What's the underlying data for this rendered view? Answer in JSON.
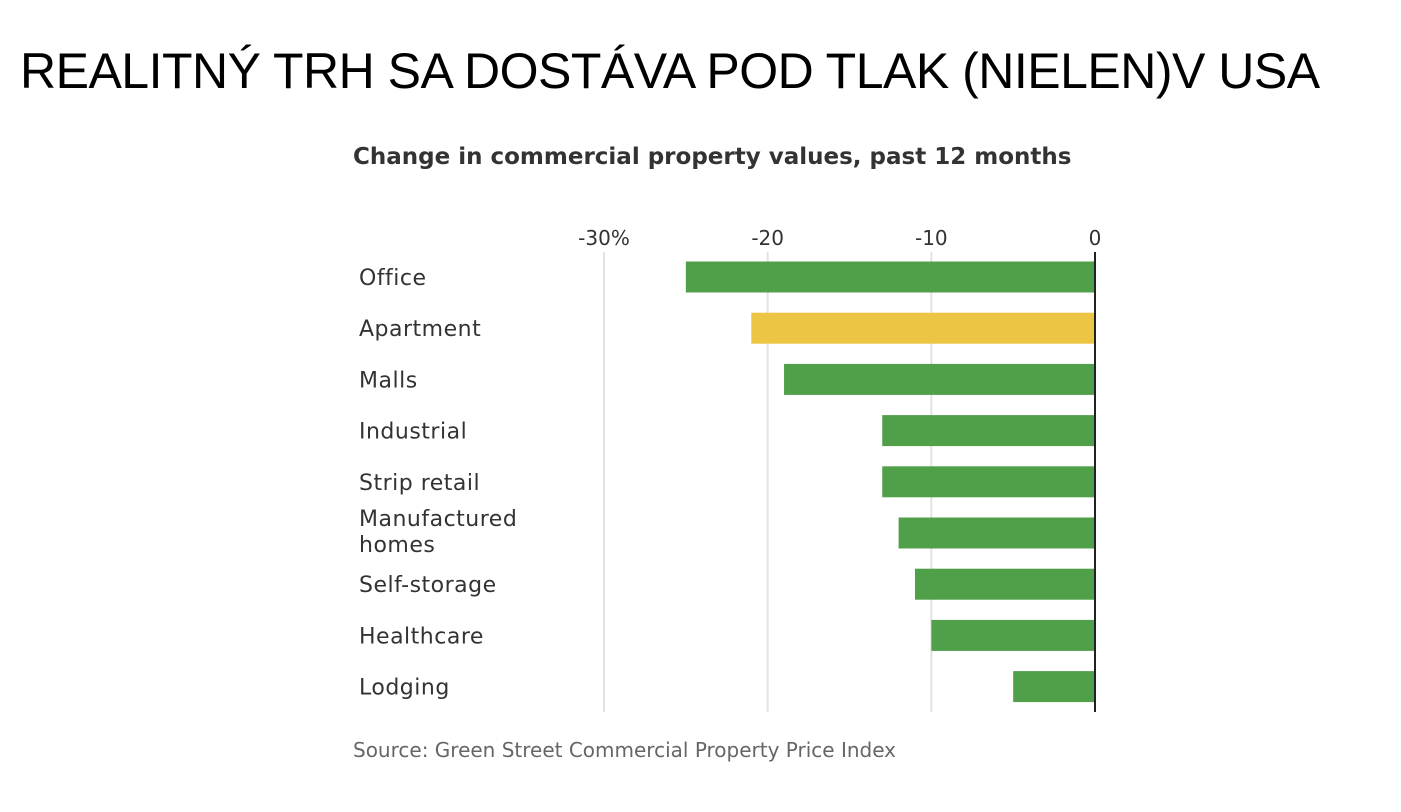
{
  "slide_title": "REALITNÝ TRH SA DOSTÁVA POD TLAK (NIELEN)V USA",
  "chart_data": {
    "type": "bar",
    "orientation": "horizontal",
    "title": "Change in commercial property values, past 12 months",
    "source": "Source: Green Street Commercial Property Price Index",
    "categories": [
      "Office",
      "Apartment",
      "Malls",
      "Industrial",
      "Strip retail",
      "Manufactured homes",
      "Self-storage",
      "Healthcare",
      "Lodging"
    ],
    "category_lines": [
      [
        "Office"
      ],
      [
        "Apartment"
      ],
      [
        "Malls"
      ],
      [
        "Industrial"
      ],
      [
        "Strip retail"
      ],
      [
        "Manufactured",
        "homes"
      ],
      [
        "Self-storage"
      ],
      [
        "Healthcare"
      ],
      [
        "Lodging"
      ]
    ],
    "values": [
      -25,
      -21,
      -19,
      -13,
      -13,
      -12,
      -11,
      -10,
      -5
    ],
    "colors": [
      "#50a04a",
      "#ecc544",
      "#50a04a",
      "#50a04a",
      "#50a04a",
      "#50a04a",
      "#50a04a",
      "#50a04a",
      "#50a04a"
    ],
    "xlim": [
      -30,
      0
    ],
    "ticks": [
      -30,
      -20,
      -10,
      0
    ],
    "tick_labels": [
      "-30%",
      "-20",
      "-10",
      "0"
    ],
    "xlabel": "",
    "ylabel": "",
    "grid": true,
    "legend": "none"
  }
}
